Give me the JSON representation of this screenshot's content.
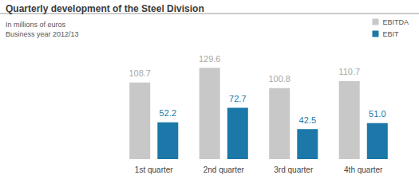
{
  "chart_data": {
    "type": "bar",
    "title": "Quarterly development of the Steel Division",
    "subtitle": "In millions of euros\nBusiness year 2012/13",
    "categories": [
      "1st quarter",
      "2nd quarter",
      "3rd quarter",
      "4th quarter"
    ],
    "series": [
      {
        "name": "EBITDA",
        "color": "#c8c8c8",
        "values": [
          108.7,
          129.6,
          100.8,
          110.7
        ]
      },
      {
        "name": "EBIT",
        "color": "#1b78a8",
        "values": [
          52.2,
          72.7,
          42.5,
          51.0
        ],
        "value_labels": [
          "52.2",
          "72.7",
          "42.5",
          "51.0"
        ]
      }
    ],
    "ylim": [
      0,
      140
    ],
    "legend": "top-right",
    "data_labels": true,
    "tick_labels": "x",
    "grid": false
  }
}
